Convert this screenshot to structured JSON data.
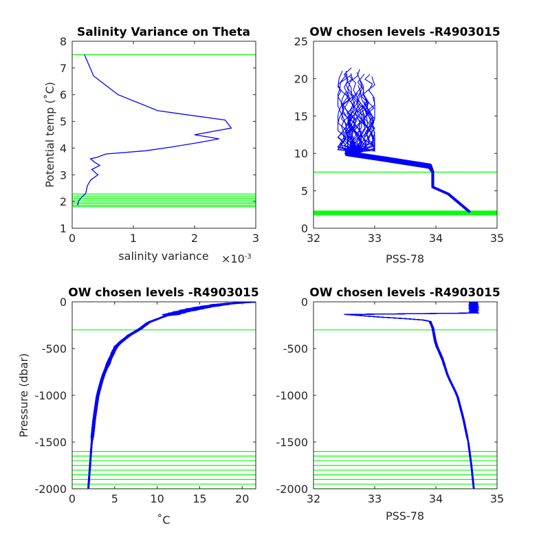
{
  "colors": {
    "data": "#0000ff",
    "levels": "#00ff00",
    "axis": "#262626"
  },
  "chart_data": [
    {
      "id": "p1",
      "type": "line",
      "title": "Salinity Variance on Theta",
      "xlabel": "salinity variance",
      "x_exponent": "×10",
      "x_exponent_power": "-3",
      "ylabel": "Potential temp (˚C)",
      "xlim": [
        0,
        3
      ],
      "ylim": [
        1,
        8
      ],
      "xticks": [
        0,
        1,
        2,
        3
      ],
      "yticks": [
        1,
        2,
        3,
        4,
        5,
        6,
        7,
        8
      ],
      "series": [
        {
          "points": [
            [
              0.2,
              7.5
            ],
            [
              0.35,
              6.7
            ],
            [
              0.75,
              6.0
            ],
            [
              1.4,
              5.4
            ],
            [
              2.5,
              5.05
            ],
            [
              2.6,
              4.75
            ],
            [
              2.0,
              4.5
            ],
            [
              2.4,
              4.35
            ],
            [
              2.05,
              4.2
            ],
            [
              1.65,
              4.05
            ],
            [
              1.2,
              3.9
            ],
            [
              0.55,
              3.78
            ],
            [
              0.4,
              3.65
            ],
            [
              0.3,
              3.6
            ],
            [
              0.35,
              3.5
            ],
            [
              0.45,
              3.35
            ],
            [
              0.32,
              3.2
            ],
            [
              0.42,
              3.0
            ],
            [
              0.3,
              2.8
            ],
            [
              0.25,
              2.6
            ],
            [
              0.22,
              2.3
            ],
            [
              0.15,
              2.15
            ],
            [
              0.1,
              2.0
            ],
            [
              0.09,
              1.85
            ]
          ]
        }
      ],
      "hlines": [
        7.5,
        2.28,
        2.2,
        2.12,
        2.05,
        1.98,
        1.92,
        1.86,
        1.81
      ]
    },
    {
      "id": "p2",
      "type": "line",
      "title": "OW chosen levels -R4903015",
      "xlabel": "PSS-78",
      "xlim": [
        32,
        35
      ],
      "ylim": [
        0,
        25
      ],
      "xticks": [
        32,
        33,
        34,
        35
      ],
      "yticks": [
        0,
        5,
        10,
        15,
        20,
        25
      ],
      "profile": {
        "upper_x_range": [
          32.4,
          33.0
        ],
        "upper_y_range": [
          9.2,
          21.5
        ],
        "knee": [
          [
            32.55,
            10.0
          ],
          [
            33.2,
            9.2
          ],
          [
            33.9,
            8.3
          ],
          [
            33.95,
            7.5
          ],
          [
            33.95,
            5.5
          ],
          [
            34.2,
            4.6
          ],
          [
            34.55,
            2.2
          ]
        ]
      },
      "hlines": [
        7.5,
        2.3,
        2.2,
        2.1,
        2.0,
        1.9,
        1.8
      ]
    },
    {
      "id": "p3",
      "type": "line",
      "title": "OW chosen levels -R4903015",
      "xlabel": "˚C",
      "ylabel": "Pressure (dbar)",
      "xlim": [
        0,
        21.6
      ],
      "ylim": [
        -2000,
        0
      ],
      "xticks": [
        0,
        5,
        10,
        15,
        20
      ],
      "yticks": [
        -2000,
        -1500,
        -1000,
        -500,
        0
      ],
      "profile": {
        "points": [
          [
            21.5,
            0
          ],
          [
            18,
            -20
          ],
          [
            14,
            -80
          ],
          [
            11,
            -150
          ],
          [
            9,
            -220
          ],
          [
            8,
            -290
          ],
          [
            6.5,
            -370
          ],
          [
            5.2,
            -470
          ],
          [
            4.5,
            -600
          ],
          [
            3.6,
            -800
          ],
          [
            3.0,
            -1000
          ],
          [
            2.6,
            -1250
          ],
          [
            2.3,
            -1500
          ],
          [
            2.1,
            -1750
          ],
          [
            1.9,
            -2000
          ]
        ]
      },
      "hlines": [
        -300,
        -1600,
        -1650,
        -1700,
        -1750,
        -1800,
        -1850,
        -1900,
        -1950,
        -2000
      ]
    },
    {
      "id": "p4",
      "type": "line",
      "title": "OW chosen levels -R4903015",
      "xlabel": "PSS-78",
      "xlim": [
        32,
        35
      ],
      "ylim": [
        -2000,
        0
      ],
      "xticks": [
        32,
        33,
        34,
        35
      ],
      "yticks": [
        -2000,
        -1500,
        -1000,
        -500,
        0
      ],
      "profile": {
        "points": [
          [
            32.5,
            -130
          ],
          [
            33.0,
            -160
          ],
          [
            33.5,
            -180
          ],
          [
            33.9,
            -200
          ],
          [
            33.95,
            -280
          ],
          [
            34.0,
            -450
          ],
          [
            34.1,
            -600
          ],
          [
            34.2,
            -800
          ],
          [
            34.35,
            -1000
          ],
          [
            34.45,
            -1250
          ],
          [
            34.53,
            -1500
          ],
          [
            34.58,
            -1750
          ],
          [
            34.62,
            -2000
          ]
        ]
      },
      "hlines": [
        -300,
        -1600,
        -1650,
        -1700,
        -1750,
        -1800,
        -1850,
        -1900,
        -1950,
        -2000
      ]
    }
  ]
}
